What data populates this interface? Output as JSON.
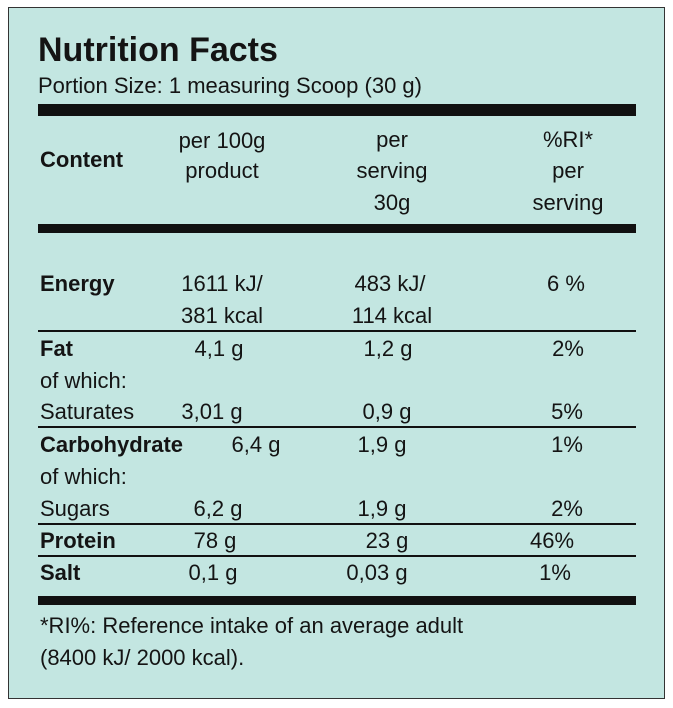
{
  "title": "Nutrition Facts",
  "portion": "Portion Size: 1 measuring Scoop (30 g)",
  "table": {
    "header": [
      [
        "Content"
      ],
      [
        "per 100g",
        "product"
      ],
      [
        "per",
        "serving",
        "30g"
      ],
      [
        "%RI*",
        "per",
        "serving"
      ]
    ],
    "rows": [
      {
        "label": [
          "Energy"
        ],
        "per_100g": [
          "1611 kJ/",
          "381 kcal"
        ],
        "per_serving": [
          "483 kJ/",
          "114 kcal"
        ],
        "ri": [
          "6 %"
        ]
      },
      {
        "label": [
          "Fat",
          "of which:"
        ],
        "per_100g": [
          "4,1 g"
        ],
        "per_serving": [
          "1,2 g"
        ],
        "ri": [
          "2%"
        ]
      },
      {
        "label": [
          "Saturates"
        ],
        "per_100g": [
          "3,01 g"
        ],
        "per_serving": [
          "0,9 g"
        ],
        "ri": [
          "5%"
        ]
      },
      {
        "label": [
          "Carbohydrate",
          "of which:"
        ],
        "per_100g": [
          "6,4 g"
        ],
        "per_serving": [
          "1,9 g"
        ],
        "ri": [
          "1%"
        ]
      },
      {
        "label": [
          "Sugars"
        ],
        "per_100g": [
          "6,2 g"
        ],
        "per_serving": [
          "1,9 g"
        ],
        "ri": [
          "2%"
        ]
      },
      {
        "label": [
          "Protein"
        ],
        "per_100g": [
          "78 g"
        ],
        "per_serving": [
          "23 g"
        ],
        "ri": [
          "46%"
        ]
      },
      {
        "label": [
          "Salt"
        ],
        "per_100g": [
          "0,1 g"
        ],
        "per_serving": [
          "0,03 g"
        ],
        "ri": [
          "1%"
        ]
      }
    ]
  },
  "footnote": [
    "*RI%: Reference intake of an average adult",
    "(8400 kJ/ 2000 kcal)."
  ]
}
